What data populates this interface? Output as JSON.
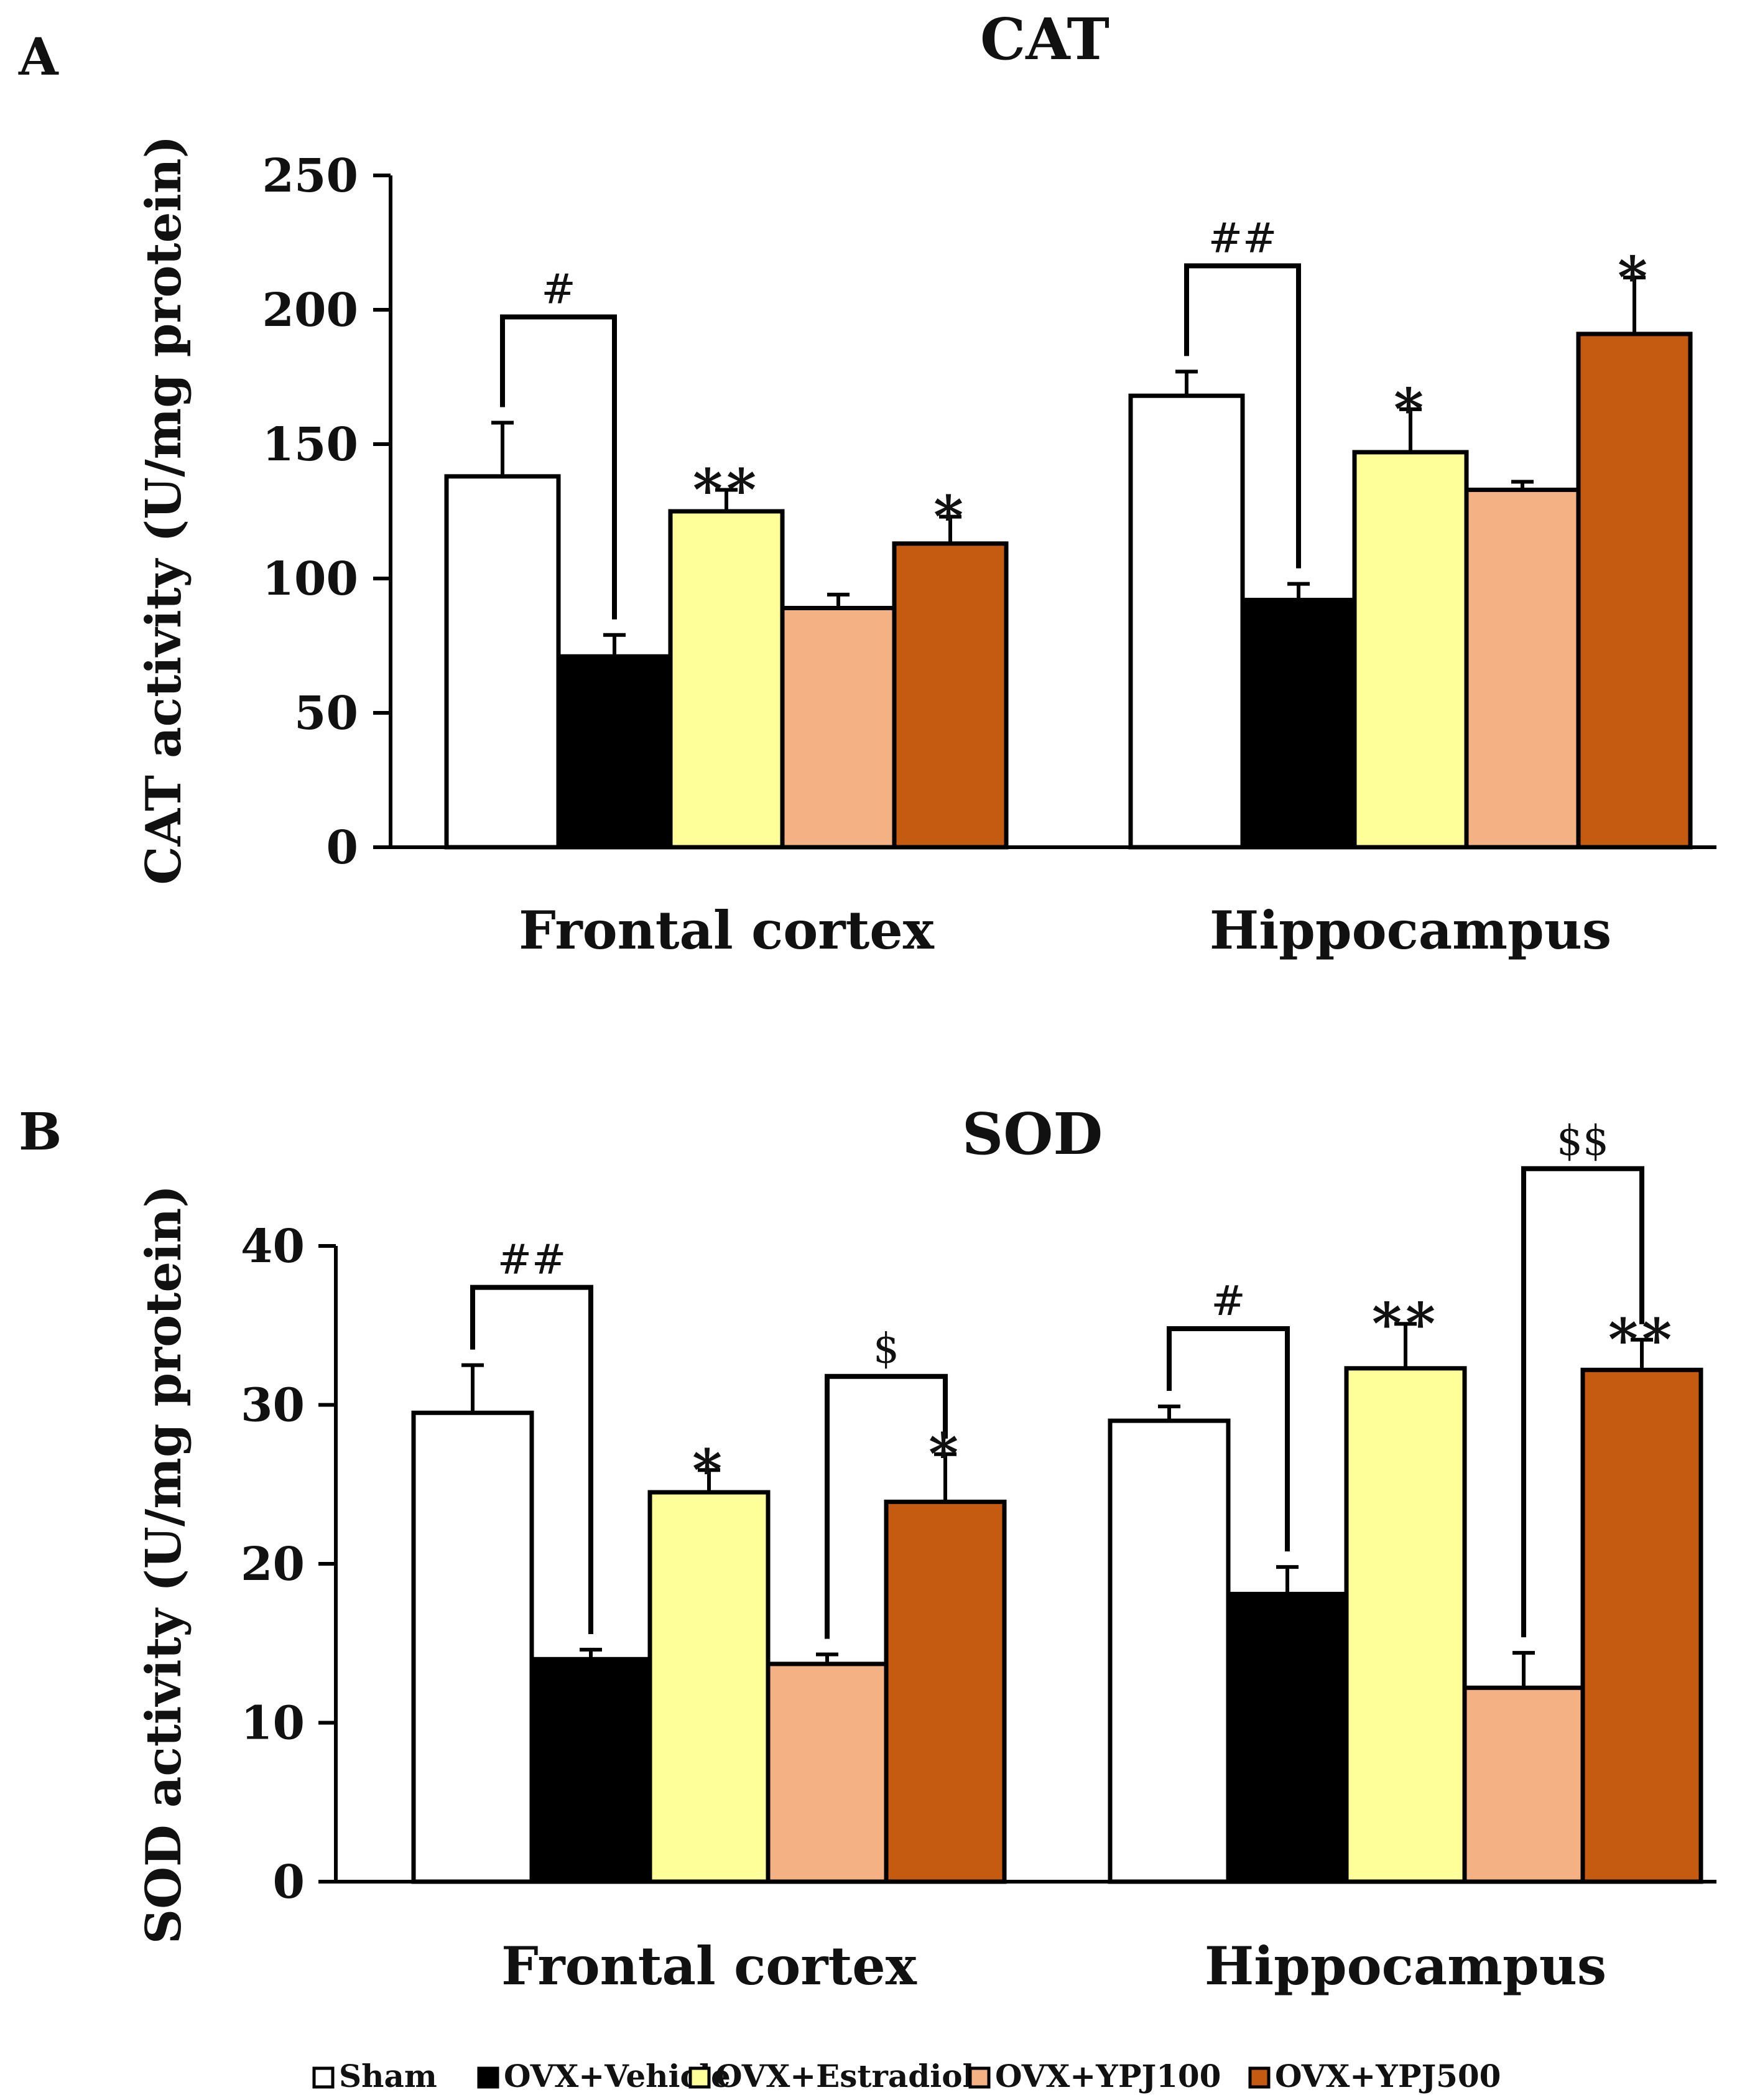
{
  "legend": [
    {
      "name": "Sham",
      "color": "#ffffff"
    },
    {
      "name": "OVX+Vehicle",
      "color": "#000000"
    },
    {
      "name": "OVX+Estradiol",
      "color": "#ffff99"
    },
    {
      "name": "OVX+YPJ100",
      "color": "#f4b183"
    },
    {
      "name": "OVX+YPJ500",
      "color": "#c55a11"
    }
  ],
  "chart_data": [
    {
      "type": "bar",
      "panel": "A",
      "title": "CAT",
      "ylabel": "CAT activity (U/mg protein)",
      "xlabel": "",
      "categories": [
        "Frontal cortex",
        "Hippocampus"
      ],
      "ylim": [
        0,
        250
      ],
      "yticks": [
        0,
        50,
        100,
        150,
        200,
        250
      ],
      "series": [
        {
          "name": "Sham",
          "values": [
            138,
            168
          ],
          "errors": [
            20,
            9
          ]
        },
        {
          "name": "OVX+Vehicle",
          "values": [
            71,
            92
          ],
          "errors": [
            8,
            6
          ]
        },
        {
          "name": "OVX+Estradiol",
          "values": [
            125,
            147
          ],
          "errors": [
            8,
            16
          ]
        },
        {
          "name": "OVX+YPJ100",
          "values": [
            89,
            133
          ],
          "errors": [
            5,
            3
          ]
        },
        {
          "name": "OVX+YPJ500",
          "values": [
            113,
            191
          ],
          "errors": [
            10,
            21
          ]
        }
      ],
      "annotations": [
        {
          "text": "#",
          "category": 0,
          "from": 0,
          "to": 1
        },
        {
          "text": "##",
          "category": 1,
          "from": 0,
          "to": 1
        },
        {
          "text": "**",
          "category": 0,
          "series": 2
        },
        {
          "text": "*",
          "category": 0,
          "series": 4
        },
        {
          "text": "*",
          "category": 1,
          "series": 2
        },
        {
          "text": "*",
          "category": 1,
          "series": 4
        }
      ]
    },
    {
      "type": "bar",
      "panel": "B",
      "title": "SOD",
      "ylabel": "SOD activity (U/mg protein)",
      "xlabel": "",
      "categories": [
        "Frontal cortex",
        "Hippocampus"
      ],
      "ylim": [
        0,
        40
      ],
      "yticks": [
        0,
        10,
        20,
        30,
        40
      ],
      "series": [
        {
          "name": "Sham",
          "values": [
            29.5,
            29.0
          ],
          "errors": [
            3.0,
            0.9
          ]
        },
        {
          "name": "OVX+Vehicle",
          "values": [
            14.0,
            18.1
          ],
          "errors": [
            0.6,
            1.7
          ]
        },
        {
          "name": "OVX+Estradiol",
          "values": [
            24.5,
            32.3
          ],
          "errors": [
            1.4,
            2.8
          ]
        },
        {
          "name": "OVX+YPJ100",
          "values": [
            13.7,
            12.2
          ],
          "errors": [
            0.6,
            2.2
          ]
        },
        {
          "name": "OVX+YPJ500",
          "values": [
            23.9,
            32.2
          ],
          "errors": [
            3.0,
            1.9
          ]
        }
      ],
      "annotations": [
        {
          "text": "##",
          "category": 0,
          "from": 0,
          "to": 1
        },
        {
          "text": "$",
          "category": 0,
          "from": 3,
          "to": 4
        },
        {
          "text": "#",
          "category": 1,
          "from": 0,
          "to": 1
        },
        {
          "text": "$$",
          "category": 1,
          "from": 3,
          "to": 4
        },
        {
          "text": "*",
          "category": 0,
          "series": 2
        },
        {
          "text": "*",
          "category": 0,
          "series": 4
        },
        {
          "text": "**",
          "category": 1,
          "series": 2
        },
        {
          "text": "**",
          "category": 1,
          "series": 4
        }
      ]
    }
  ]
}
